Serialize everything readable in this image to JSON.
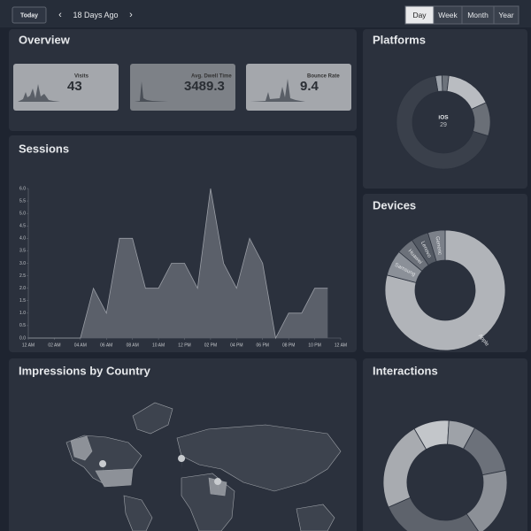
{
  "toolbar": {
    "today": "Today",
    "date": "18 Days Ago",
    "ranges": [
      "Day",
      "Week",
      "Month",
      "Year"
    ],
    "active_range": 0
  },
  "overview": {
    "title": "Overview",
    "stats": [
      {
        "label": "Visits",
        "value": "43"
      },
      {
        "label": "Avg. Dwell Time",
        "value": "3489.3"
      },
      {
        "label": "Bounce Rate",
        "value": "9.4"
      }
    ]
  },
  "sessions": {
    "title": "Sessions",
    "chart_data": {
      "type": "area",
      "color": "#5b606a",
      "line_color": "#9a9ea6",
      "x": [
        0,
        1,
        2,
        3,
        4,
        5,
        6,
        7,
        8,
        9,
        10,
        11,
        12,
        13,
        14,
        15,
        16,
        17,
        18,
        19,
        20,
        21,
        22,
        23
      ],
      "values": [
        0,
        0,
        0,
        0,
        0,
        2,
        1,
        4,
        4,
        2,
        2,
        3,
        3,
        2,
        6,
        3,
        2,
        4,
        3,
        0,
        1,
        1,
        2,
        2
      ],
      "xlim": [
        0,
        24
      ],
      "xticks": [
        {
          "value": 0,
          "label": "12 AM"
        },
        {
          "value": 2,
          "label": "02 AM"
        },
        {
          "value": 4,
          "label": "04 AM"
        },
        {
          "value": 6,
          "label": "06 AM"
        },
        {
          "value": 8,
          "label": "08 AM"
        },
        {
          "value": 10,
          "label": "10 AM"
        },
        {
          "value": 12,
          "label": "12 PM"
        },
        {
          "value": 14,
          "label": "02 PM"
        },
        {
          "value": 16,
          "label": "04 PM"
        },
        {
          "value": 18,
          "label": "06 PM"
        },
        {
          "value": 20,
          "label": "08 PM"
        },
        {
          "value": 22,
          "label": "10 PM"
        },
        {
          "value": 24,
          "label": "12 AM"
        }
      ],
      "ylim": [
        0,
        6
      ],
      "yticks": [
        {
          "value": 0,
          "label": "0.0"
        },
        {
          "value": 0.5,
          "label": "0.5"
        },
        {
          "value": 1,
          "label": "1.0"
        },
        {
          "value": 1.5,
          "label": "1.5"
        },
        {
          "value": 2,
          "label": "2.0"
        },
        {
          "value": 2.5,
          "label": "2.5"
        },
        {
          "value": 3,
          "label": "3.0"
        },
        {
          "value": 3.5,
          "label": "3.5"
        },
        {
          "value": 4,
          "label": "4.0"
        },
        {
          "value": 4.5,
          "label": "4.5"
        },
        {
          "value": 5,
          "label": "5.0"
        },
        {
          "value": 5.5,
          "label": "5.5"
        },
        {
          "value": 6,
          "label": "6.0"
        }
      ]
    }
  },
  "impressions": {
    "title": "Impressions by Country"
  },
  "platforms": {
    "title": "Platforms",
    "chart_data": {
      "type": "donut",
      "categories": [
        null,
        null,
        null,
        null,
        "iOS"
      ],
      "values": [
        1,
        1,
        7,
        5,
        29
      ],
      "colors": [
        "#9aa0a8",
        "#6d737c",
        "#b9bcc1",
        "#6a6f77",
        "#3a404b"
      ]
    }
  },
  "devices": {
    "title": "Devices",
    "chart_data": {
      "type": "donut",
      "categories": [
        "Apple",
        "Samsung",
        "Huawei",
        "Lenovo",
        "Generic"
      ],
      "values": [
        34,
        3,
        2,
        2,
        2
      ],
      "colors": [
        "#b1b4b9",
        "#8b9098",
        "#6c717a",
        "#545a64",
        "#7b8089"
      ]
    }
  },
  "interactions": {
    "title": "Interactions",
    "chart_data": {
      "type": "donut",
      "values": [
        4,
        3,
        6,
        8,
        12,
        10
      ],
      "colors": [
        "#c3c6ca",
        "#9ea2a8",
        "#6c717a",
        "#8c9097",
        "#5e636c",
        "#a8abb0"
      ]
    }
  }
}
